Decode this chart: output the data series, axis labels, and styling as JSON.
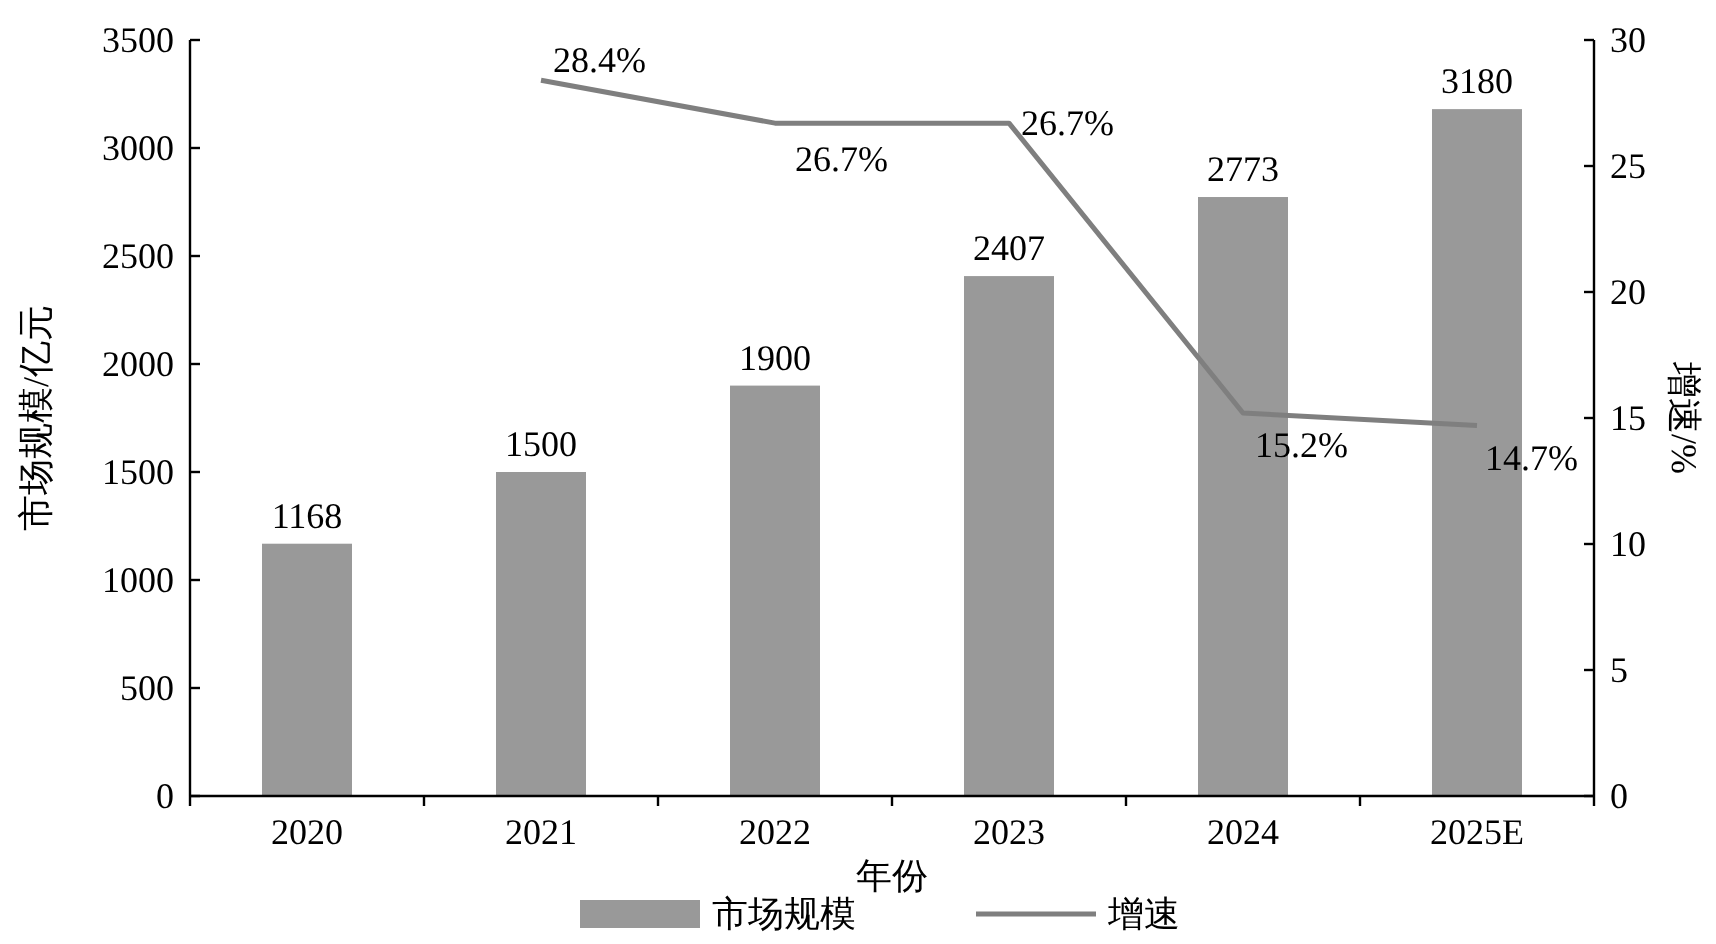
{
  "chart_data": {
    "type": "bar",
    "categories": [
      "2020",
      "2021",
      "2022",
      "2023",
      "2024",
      "2025E"
    ],
    "xlabel": "年份",
    "ylabel": "市场规模/亿元",
    "y2label": "增速/%",
    "ylim": [
      0,
      3500
    ],
    "yticks": [
      0,
      500,
      1000,
      1500,
      2000,
      2500,
      3000,
      3500
    ],
    "y2lim": [
      0,
      30
    ],
    "y2ticks": [
      0,
      5,
      10,
      15,
      20,
      25,
      30
    ],
    "grid": false,
    "legend": "bottom",
    "series": [
      {
        "name": "市场规模",
        "color": "#999999",
        "values": [
          1168,
          1500,
          1900,
          2407,
          2773,
          3180
        ],
        "value_labels": [
          "1168",
          "1500",
          "1900",
          "2407",
          "2773",
          "3180"
        ]
      },
      {
        "name": "增速",
        "type": "line",
        "axis": "y2",
        "color": "#7f7f7f",
        "marker": "none",
        "line_style": "solid",
        "values": [
          null,
          28.4,
          26.7,
          26.7,
          15.2,
          14.7
        ],
        "value_labels": [
          null,
          "28.4%",
          "26.7%",
          "26.7%",
          "15.2%",
          "14.7%"
        ]
      }
    ]
  }
}
